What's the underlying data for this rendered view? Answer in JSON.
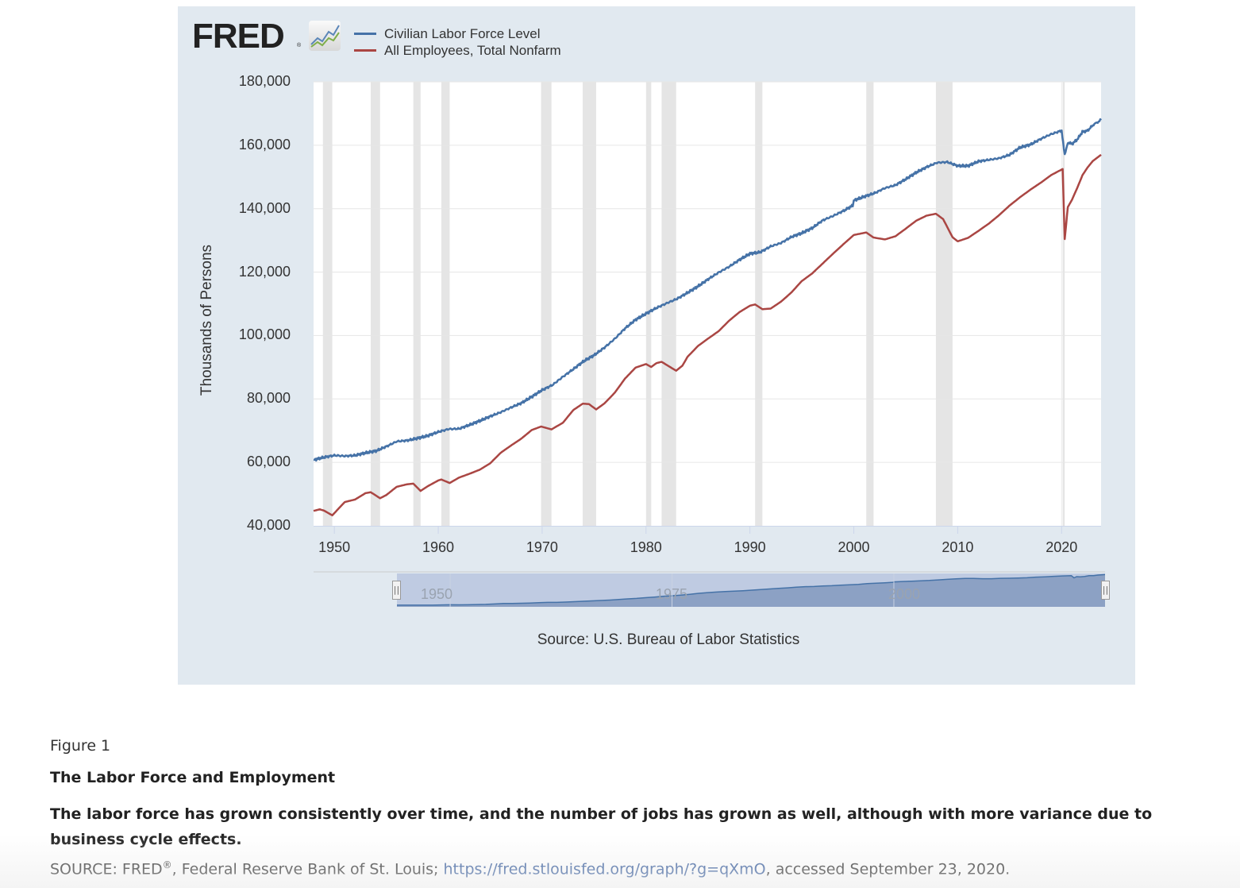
{
  "chart": {
    "logo_text": "FRED",
    "logo_reg": "®",
    "source_text": "Source: U.S. Bureau of Labor Statistics"
  },
  "navigator": {
    "labels": [
      "1950",
      "1975",
      "2000"
    ],
    "left_handle_icon": "grip-icon",
    "right_handle_icon": "grip-icon"
  },
  "caption": {
    "figure_label": "Figure 1",
    "title": "The Labor Force and Employment",
    "description": "The labor force has grown consistently over time, and the number of jobs has grown as well, although with more variance due to business cycle effects.",
    "source_prefix": "SOURCE: FRED",
    "source_reg": "®",
    "source_mid": ", Federal Reserve Bank of St. Louis; ",
    "source_link": "https://fred.stlouisfed.org/graph/?g=qXmO",
    "source_suffix": ", accessed September 23, 2020."
  },
  "chart_data": {
    "type": "line",
    "title": "",
    "xlabel": "",
    "ylabel": "Thousands of Persons",
    "xlim": [
      1948,
      2023.8
    ],
    "ylim": [
      40000,
      180000
    ],
    "x_ticks": [
      "1950",
      "1960",
      "1970",
      "1980",
      "1990",
      "2000",
      "2010",
      "2020"
    ],
    "y_ticks": [
      "40,000",
      "60,000",
      "80,000",
      "100,000",
      "120,000",
      "140,000",
      "160,000",
      "180,000"
    ],
    "grid": true,
    "legend": "top-left",
    "recessions": [
      [
        1948.9,
        1949.8
      ],
      [
        1953.5,
        1954.4
      ],
      [
        1957.6,
        1958.3
      ],
      [
        1960.3,
        1961.1
      ],
      [
        1969.9,
        1970.9
      ],
      [
        1973.9,
        1975.2
      ],
      [
        1980.0,
        1980.5
      ],
      [
        1981.5,
        1982.9
      ],
      [
        1990.5,
        1991.2
      ],
      [
        2001.2,
        2001.9
      ],
      [
        2007.9,
        2009.5
      ],
      [
        2020.1,
        2020.3
      ]
    ],
    "series": [
      {
        "name": "Civilian Labor Force Level",
        "color": "#4572a7",
        "points": [
          [
            1948.0,
            60800
          ],
          [
            1949.0,
            61600
          ],
          [
            1950.0,
            62200
          ],
          [
            1951.0,
            62000
          ],
          [
            1952.0,
            62200
          ],
          [
            1953.0,
            63000
          ],
          [
            1954.0,
            63600
          ],
          [
            1955.0,
            65000
          ],
          [
            1956.0,
            66600
          ],
          [
            1957.0,
            66900
          ],
          [
            1958.0,
            67600
          ],
          [
            1959.0,
            68400
          ],
          [
            1960.0,
            69600
          ],
          [
            1961.0,
            70500
          ],
          [
            1962.0,
            70600
          ],
          [
            1963.0,
            71800
          ],
          [
            1964.0,
            73100
          ],
          [
            1965.0,
            74500
          ],
          [
            1966.0,
            75800
          ],
          [
            1967.0,
            77300
          ],
          [
            1968.0,
            78700
          ],
          [
            1969.0,
            80700
          ],
          [
            1970.0,
            82800
          ],
          [
            1971.0,
            84400
          ],
          [
            1972.0,
            87000
          ],
          [
            1973.0,
            89400
          ],
          [
            1974.0,
            91900
          ],
          [
            1975.0,
            93800
          ],
          [
            1976.0,
            96200
          ],
          [
            1977.0,
            99000
          ],
          [
            1978.0,
            102300
          ],
          [
            1979.0,
            105000
          ],
          [
            1980.0,
            106900
          ],
          [
            1981.0,
            108700
          ],
          [
            1982.0,
            110200
          ],
          [
            1983.0,
            111600
          ],
          [
            1984.0,
            113500
          ],
          [
            1985.0,
            115500
          ],
          [
            1986.0,
            117800
          ],
          [
            1987.0,
            119900
          ],
          [
            1988.0,
            121700
          ],
          [
            1989.0,
            123900
          ],
          [
            1990.0,
            125800
          ],
          [
            1991.0,
            126300
          ],
          [
            1992.0,
            128100
          ],
          [
            1993.0,
            129200
          ],
          [
            1994.0,
            131100
          ],
          [
            1995.0,
            132300
          ],
          [
            1996.0,
            133900
          ],
          [
            1997.0,
            136300
          ],
          [
            1998.0,
            137700
          ],
          [
            1999.0,
            139300
          ],
          [
            1999.9,
            141000
          ],
          [
            2000.0,
            142600
          ],
          [
            2001.0,
            143800
          ],
          [
            2002.0,
            144900
          ],
          [
            2003.0,
            146500
          ],
          [
            2004.0,
            147400
          ],
          [
            2005.0,
            149300
          ],
          [
            2006.0,
            151400
          ],
          [
            2007.0,
            153100
          ],
          [
            2008.0,
            154500
          ],
          [
            2009.0,
            154700
          ],
          [
            2010.0,
            153500
          ],
          [
            2011.0,
            153500
          ],
          [
            2012.0,
            154900
          ],
          [
            2013.0,
            155400
          ],
          [
            2014.0,
            155900
          ],
          [
            2015.0,
            157000
          ],
          [
            2016.0,
            159300
          ],
          [
            2017.0,
            160200
          ],
          [
            2018.0,
            162000
          ],
          [
            2019.0,
            163500
          ],
          [
            2020.0,
            164600
          ],
          [
            2020.3,
            156800
          ],
          [
            2020.6,
            160900
          ],
          [
            2021.0,
            160400
          ],
          [
            2021.5,
            161800
          ],
          [
            2022.0,
            164200
          ],
          [
            2022.5,
            164600
          ],
          [
            2023.0,
            166300
          ],
          [
            2023.8,
            168000
          ]
        ]
      },
      {
        "name": "All Employees, Total Nonfarm",
        "color": "#aa4643",
        "points": [
          [
            1948.0,
            44700
          ],
          [
            1948.6,
            45200
          ],
          [
            1949.0,
            44800
          ],
          [
            1949.8,
            43300
          ],
          [
            1950.0,
            44000
          ],
          [
            1951.0,
            47500
          ],
          [
            1952.0,
            48300
          ],
          [
            1953.0,
            50300
          ],
          [
            1953.5,
            50600
          ],
          [
            1954.4,
            48700
          ],
          [
            1955.0,
            49700
          ],
          [
            1956.0,
            52300
          ],
          [
            1957.0,
            53100
          ],
          [
            1957.6,
            53300
          ],
          [
            1958.3,
            51000
          ],
          [
            1959.0,
            52500
          ],
          [
            1960.0,
            54300
          ],
          [
            1960.3,
            54600
          ],
          [
            1961.1,
            53500
          ],
          [
            1962.0,
            55200
          ],
          [
            1963.0,
            56400
          ],
          [
            1964.0,
            57700
          ],
          [
            1965.0,
            59700
          ],
          [
            1966.0,
            63000
          ],
          [
            1967.0,
            65300
          ],
          [
            1968.0,
            67500
          ],
          [
            1969.0,
            70200
          ],
          [
            1969.9,
            71300
          ],
          [
            1970.9,
            70400
          ],
          [
            1972.0,
            72500
          ],
          [
            1973.0,
            76500
          ],
          [
            1973.9,
            78500
          ],
          [
            1974.5,
            78400
          ],
          [
            1975.2,
            76700
          ],
          [
            1976.0,
            78600
          ],
          [
            1977.0,
            82000
          ],
          [
            1978.0,
            86500
          ],
          [
            1979.0,
            89900
          ],
          [
            1980.0,
            91000
          ],
          [
            1980.5,
            90100
          ],
          [
            1981.0,
            91300
          ],
          [
            1981.5,
            91700
          ],
          [
            1982.9,
            88900
          ],
          [
            1983.5,
            90500
          ],
          [
            1984.0,
            93300
          ],
          [
            1985.0,
            96700
          ],
          [
            1986.0,
            99100
          ],
          [
            1987.0,
            101400
          ],
          [
            1988.0,
            104700
          ],
          [
            1989.0,
            107400
          ],
          [
            1990.0,
            109400
          ],
          [
            1990.5,
            109800
          ],
          [
            1991.2,
            108300
          ],
          [
            1992.0,
            108500
          ],
          [
            1993.0,
            110700
          ],
          [
            1994.0,
            113600
          ],
          [
            1995.0,
            117200
          ],
          [
            1996.0,
            119600
          ],
          [
            1997.0,
            122700
          ],
          [
            1998.0,
            125800
          ],
          [
            1999.0,
            128800
          ],
          [
            2000.0,
            131700
          ],
          [
            2001.2,
            132500
          ],
          [
            2001.9,
            130900
          ],
          [
            2003.0,
            130300
          ],
          [
            2004.0,
            131300
          ],
          [
            2005.0,
            133700
          ],
          [
            2006.0,
            136200
          ],
          [
            2007.0,
            137800
          ],
          [
            2007.9,
            138400
          ],
          [
            2008.6,
            136700
          ],
          [
            2009.5,
            131000
          ],
          [
            2010.0,
            129700
          ],
          [
            2011.0,
            130800
          ],
          [
            2012.0,
            133000
          ],
          [
            2013.0,
            135300
          ],
          [
            2014.0,
            138000
          ],
          [
            2015.0,
            141000
          ],
          [
            2016.0,
            143600
          ],
          [
            2017.0,
            146000
          ],
          [
            2018.0,
            148200
          ],
          [
            2019.0,
            150600
          ],
          [
            2020.1,
            152500
          ],
          [
            2020.3,
            130400
          ],
          [
            2020.6,
            140500
          ],
          [
            2021.0,
            142800
          ],
          [
            2021.5,
            146500
          ],
          [
            2022.0,
            150500
          ],
          [
            2022.5,
            153000
          ],
          [
            2023.0,
            155000
          ],
          [
            2023.8,
            157000
          ]
        ]
      }
    ]
  }
}
